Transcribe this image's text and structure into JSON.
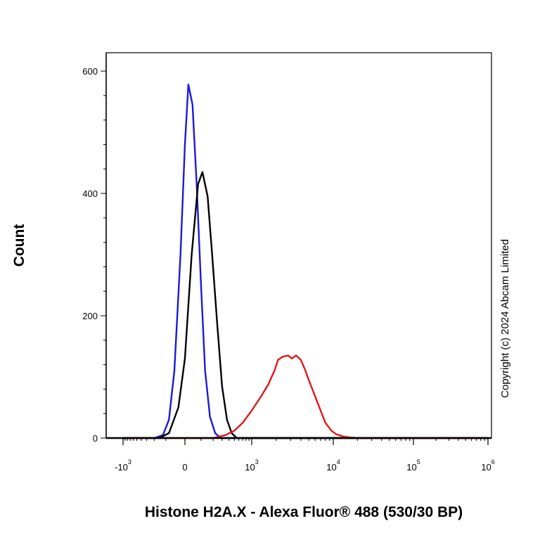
{
  "chart_data": {
    "type": "line",
    "title": "",
    "xlabel": "Histone H2A.X - Alexa Fluor® 488 (530/30 BP)",
    "ylabel": "Count",
    "annotation": "Copyright (c) 2024 Abcam Limited",
    "x_scale": "biexponential",
    "ylim": [
      0,
      630
    ],
    "x_ticks": [
      {
        "base": "-10",
        "exp": "3",
        "value": -1000
      },
      {
        "base": "0",
        "exp": "",
        "value": 0
      },
      {
        "base": "10",
        "exp": "3",
        "value": 1000
      },
      {
        "base": "10",
        "exp": "4",
        "value": 10000
      },
      {
        "base": "10",
        "exp": "5",
        "value": 100000
      },
      {
        "base": "10",
        "exp": "6",
        "value": 1000000
      }
    ],
    "y_ticks": [
      {
        "label": "0",
        "value": 0
      },
      {
        "label": "200",
        "value": 200
      },
      {
        "label": "400",
        "value": 400
      },
      {
        "label": "600",
        "value": 600
      }
    ],
    "series": [
      {
        "color": "#1a1adb",
        "x": [
          -1000,
          -200,
          -120,
          -80,
          -50,
          -20,
          0,
          20,
          45,
          70,
          100,
          130,
          170,
          220,
          280,
          1000000
        ],
        "y": [
          0,
          0,
          5,
          30,
          110,
          300,
          480,
          578,
          545,
          420,
          250,
          110,
          35,
          8,
          0,
          0
        ]
      },
      {
        "color": "#000000",
        "x": [
          -1000,
          -150,
          -80,
          -30,
          0,
          40,
          80,
          110,
          150,
          190,
          240,
          300,
          370,
          450,
          550,
          1000000
        ],
        "y": [
          0,
          0,
          8,
          50,
          130,
          300,
          415,
          435,
          395,
          300,
          190,
          85,
          30,
          8,
          0,
          0
        ]
      },
      {
        "color": "#e01818",
        "x": [
          -1000,
          200,
          350,
          500,
          700,
          1000,
          1300,
          1600,
          1900,
          2100,
          2400,
          2800,
          3100,
          3500,
          4000,
          4500,
          5000,
          6000,
          7000,
          8000,
          9500,
          11000,
          13000,
          16000,
          20000,
          25000,
          30000,
          1000000
        ],
        "y": [
          0,
          0,
          5,
          12,
          25,
          45,
          68,
          88,
          110,
          128,
          133,
          135,
          130,
          135,
          128,
          112,
          95,
          68,
          45,
          25,
          12,
          6,
          3,
          1,
          0,
          0,
          0,
          0
        ]
      }
    ]
  }
}
